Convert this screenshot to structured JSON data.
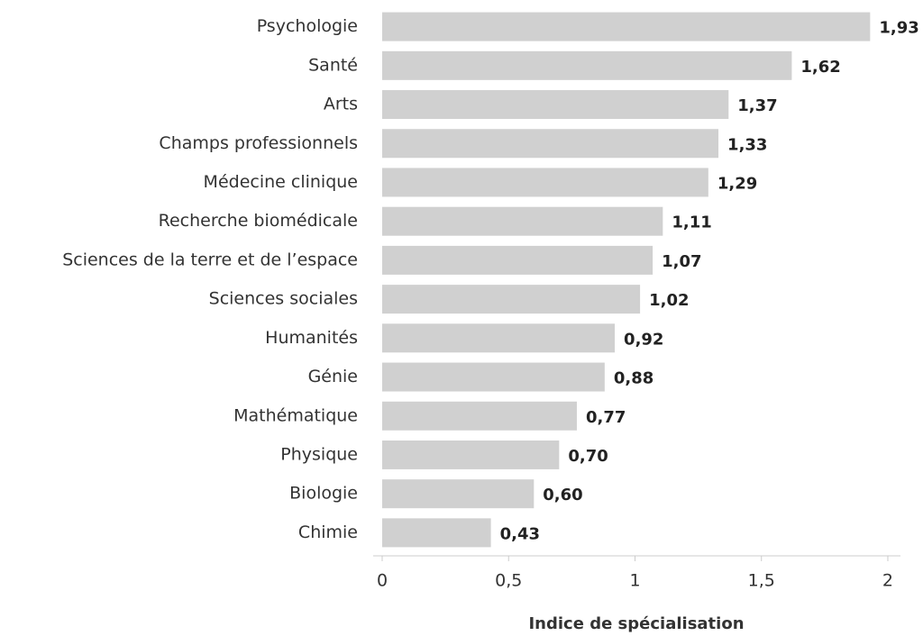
{
  "chart_data": {
    "type": "barh",
    "categories": [
      "Psychologie",
      "Santé",
      "Arts",
      "Champs professionnels",
      "Médecine clinique",
      "Recherche biomédicale",
      "Sciences de la terre et de l’espace",
      "Sciences sociales",
      "Humanités",
      "Génie",
      "Mathématique",
      "Physique",
      "Biologie",
      "Chimie"
    ],
    "values": [
      1.93,
      1.62,
      1.37,
      1.33,
      1.29,
      1.11,
      1.07,
      1.02,
      0.92,
      0.88,
      0.77,
      0.7,
      0.6,
      0.43
    ],
    "value_labels": [
      "1,93",
      "1,62",
      "1,37",
      "1,33",
      "1,29",
      "1,11",
      "1,07",
      "1,02",
      "0,92",
      "0,88",
      "0,77",
      "0,70",
      "0,60",
      "0,43"
    ],
    "color": "#d0d0d0",
    "xlabel": "Indice de spécialisation",
    "xlim": [
      0,
      2.05
    ],
    "xticks": [
      0,
      {
        "value": 0.5,
        "label": "0,5"
      },
      1,
      {
        "value": 1.5,
        "label": "1,5"
      },
      2
    ]
  }
}
